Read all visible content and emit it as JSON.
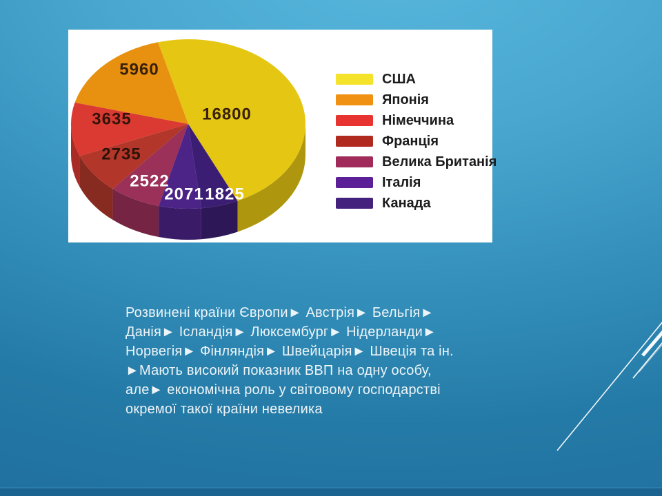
{
  "theme": {
    "background_top": "#58b7dd",
    "background_bottom": "#20709f",
    "panel_background": "#ffffff",
    "body_text_color": "#edf4f8",
    "decoration_line_color": "#fdfeff"
  },
  "slide": {
    "body_text": {
      "lines": [
        "Розвинені країни Європи► Австрія► Бельгія►",
        "Данія► Ісландія► Люксембург► Нідерланди►",
        "Норвегія► Фінляндія► Швейцарія► Швеція та ін.",
        "►Мають високий показник ВВП на одну особу,",
        "але► економічна роль у світовому господарстві",
        "окремої такої країни невелика"
      ]
    }
  },
  "chart_data": {
    "type": "pie",
    "style": "3d",
    "title": "",
    "legend_position": "right",
    "start_angle_deg": -65.14,
    "categories": [
      "США",
      "Японія",
      "Німеччина",
      "Франція",
      "Велика Британія",
      "Італія",
      "Канада"
    ],
    "values": [
      16800,
      5960,
      3635,
      2735,
      2522,
      2071,
      1825
    ],
    "data_labels": [
      "16800",
      "5960",
      "3635",
      "2735",
      "2522",
      "2071",
      "1825"
    ],
    "slice_colors": [
      "#e5c713",
      "#e89110",
      "#da3a31",
      "#b2372a",
      "#9b3058",
      "#4c2387",
      "#3b1e73"
    ],
    "legend_colors": [
      "#f4e22b",
      "#f09113",
      "#e73430",
      "#b02a20",
      "#a02a5a",
      "#5b2098",
      "#45217e"
    ],
    "data_label_colors": [
      "#38200a",
      "#38200a",
      "#33140a",
      "#2e1208",
      "#ffffff",
      "#ffffff",
      "#ffffff"
    ]
  }
}
